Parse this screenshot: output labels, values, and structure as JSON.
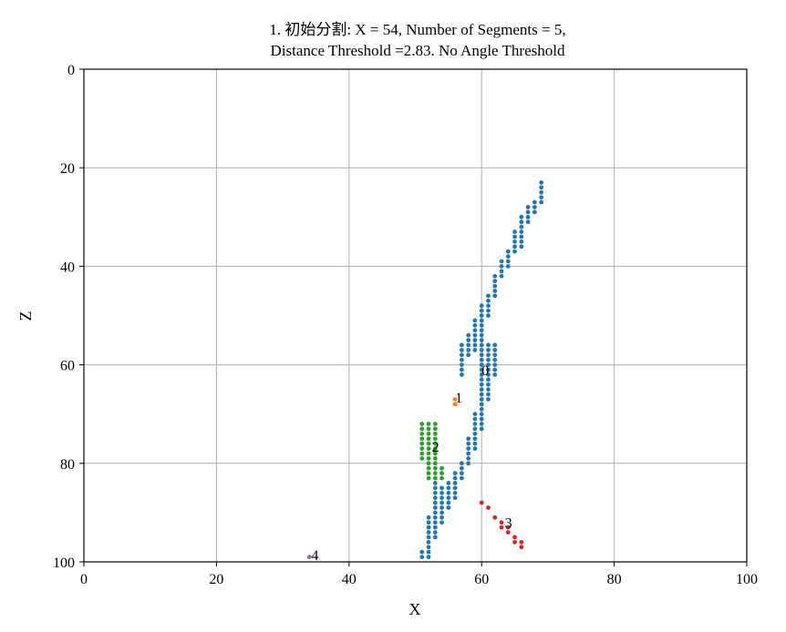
{
  "chart_data": {
    "type": "scatter",
    "title_line1": "1. 初始分割: X = 54, Number of Segments = 5,",
    "title_line2": "Distance Threshold =2.83. No Angle Threshold",
    "xlabel": "X",
    "ylabel": "Z",
    "xlim": [
      0,
      100
    ],
    "ylim": [
      0,
      100
    ],
    "y_inverted": true,
    "grid": true,
    "xticks": [
      0,
      20,
      40,
      60,
      80,
      100
    ],
    "yticks": [
      0,
      20,
      40,
      60,
      80,
      100
    ],
    "series": [
      {
        "label": "0",
        "label_pos": [
          60,
          61
        ],
        "color": "#1f77b4",
        "points": [
          [
            69,
            23
          ],
          [
            69,
            24
          ],
          [
            69,
            25
          ],
          [
            69,
            26
          ],
          [
            69,
            27
          ],
          [
            68,
            27
          ],
          [
            68,
            28
          ],
          [
            68,
            29
          ],
          [
            67,
            28
          ],
          [
            67,
            29
          ],
          [
            67,
            30
          ],
          [
            67,
            31
          ],
          [
            66,
            30
          ],
          [
            66,
            31
          ],
          [
            66,
            32
          ],
          [
            66,
            33
          ],
          [
            66,
            34
          ],
          [
            66,
            35
          ],
          [
            66,
            36
          ],
          [
            65,
            33
          ],
          [
            65,
            34
          ],
          [
            65,
            35
          ],
          [
            65,
            36
          ],
          [
            65,
            37
          ],
          [
            64,
            37
          ],
          [
            64,
            38
          ],
          [
            64,
            39
          ],
          [
            64,
            40
          ],
          [
            63,
            39
          ],
          [
            63,
            40
          ],
          [
            63,
            41
          ],
          [
            63,
            42
          ],
          [
            62,
            42
          ],
          [
            62,
            43
          ],
          [
            62,
            44
          ],
          [
            62,
            45
          ],
          [
            62,
            46
          ],
          [
            61,
            46
          ],
          [
            61,
            47
          ],
          [
            61,
            48
          ],
          [
            61,
            49
          ],
          [
            61,
            50
          ],
          [
            60,
            48
          ],
          [
            60,
            49
          ],
          [
            60,
            50
          ],
          [
            60,
            51
          ],
          [
            60,
            52
          ],
          [
            60,
            53
          ],
          [
            60,
            54
          ],
          [
            60,
            55
          ],
          [
            60,
            56
          ],
          [
            60,
            57
          ],
          [
            60,
            58
          ],
          [
            60,
            59
          ],
          [
            60,
            60
          ],
          [
            60,
            61
          ],
          [
            60,
            62
          ],
          [
            60,
            63
          ],
          [
            60,
            64
          ],
          [
            60,
            65
          ],
          [
            60,
            66
          ],
          [
            60,
            67
          ],
          [
            60,
            68
          ],
          [
            60,
            69
          ],
          [
            60,
            70
          ],
          [
            60,
            71
          ],
          [
            60,
            72
          ],
          [
            60,
            73
          ],
          [
            59,
            51
          ],
          [
            59,
            52
          ],
          [
            59,
            53
          ],
          [
            59,
            54
          ],
          [
            59,
            55
          ],
          [
            59,
            56
          ],
          [
            59,
            57
          ],
          [
            58,
            54
          ],
          [
            58,
            55
          ],
          [
            58,
            56
          ],
          [
            58,
            57
          ],
          [
            58,
            58
          ],
          [
            57,
            56
          ],
          [
            57,
            57
          ],
          [
            57,
            58
          ],
          [
            57,
            59
          ],
          [
            57,
            60
          ],
          [
            57,
            61
          ],
          [
            57,
            62
          ],
          [
            61,
            56
          ],
          [
            61,
            57
          ],
          [
            61,
            58
          ],
          [
            61,
            59
          ],
          [
            61,
            60
          ],
          [
            61,
            61
          ],
          [
            61,
            62
          ],
          [
            61,
            63
          ],
          [
            61,
            64
          ],
          [
            61,
            65
          ],
          [
            61,
            66
          ],
          [
            61,
            67
          ],
          [
            62,
            56
          ],
          [
            62,
            57
          ],
          [
            62,
            58
          ],
          [
            62,
            59
          ],
          [
            62,
            60
          ],
          [
            62,
            61
          ],
          [
            62,
            62
          ],
          [
            59,
            70
          ],
          [
            59,
            71
          ],
          [
            59,
            72
          ],
          [
            59,
            73
          ],
          [
            59,
            74
          ],
          [
            59,
            75
          ],
          [
            59,
            76
          ],
          [
            59,
            77
          ],
          [
            58,
            75
          ],
          [
            58,
            76
          ],
          [
            58,
            77
          ],
          [
            58,
            78
          ],
          [
            58,
            79
          ],
          [
            58,
            80
          ],
          [
            57,
            80
          ],
          [
            57,
            81
          ],
          [
            57,
            82
          ],
          [
            57,
            83
          ],
          [
            56,
            82
          ],
          [
            56,
            83
          ],
          [
            56,
            84
          ],
          [
            56,
            85
          ],
          [
            56,
            86
          ],
          [
            56,
            87
          ],
          [
            55,
            84
          ],
          [
            55,
            85
          ],
          [
            55,
            86
          ],
          [
            55,
            87
          ],
          [
            55,
            88
          ],
          [
            55,
            89
          ],
          [
            54,
            85
          ],
          [
            54,
            86
          ],
          [
            54,
            87
          ],
          [
            54,
            88
          ],
          [
            54,
            89
          ],
          [
            54,
            90
          ],
          [
            54,
            91
          ],
          [
            54,
            92
          ],
          [
            53,
            83
          ],
          [
            53,
            84
          ],
          [
            53,
            85
          ],
          [
            53,
            86
          ],
          [
            53,
            87
          ],
          [
            53,
            88
          ],
          [
            53,
            89
          ],
          [
            53,
            90
          ],
          [
            53,
            91
          ],
          [
            53,
            92
          ],
          [
            53,
            93
          ],
          [
            53,
            94
          ],
          [
            53,
            95
          ],
          [
            52,
            91
          ],
          [
            52,
            92
          ],
          [
            52,
            93
          ],
          [
            52,
            94
          ],
          [
            52,
            95
          ],
          [
            52,
            96
          ],
          [
            52,
            97
          ],
          [
            52,
            98
          ],
          [
            52,
            99
          ],
          [
            51,
            98
          ],
          [
            51,
            99
          ]
        ]
      },
      {
        "label": "1",
        "label_pos": [
          56,
          66.5
        ],
        "color": "#ff7f0e",
        "points": [
          [
            56,
            67
          ],
          [
            56,
            68
          ]
        ]
      },
      {
        "label": "2",
        "label_pos": [
          52.5,
          76.5
        ],
        "color": "#2ca02c",
        "points": [
          [
            51,
            72
          ],
          [
            51,
            73
          ],
          [
            51,
            74
          ],
          [
            51,
            75
          ],
          [
            51,
            76
          ],
          [
            51,
            77
          ],
          [
            51,
            78
          ],
          [
            51,
            79
          ],
          [
            52,
            72
          ],
          [
            52,
            73
          ],
          [
            52,
            74
          ],
          [
            52,
            75
          ],
          [
            52,
            76
          ],
          [
            52,
            77
          ],
          [
            52,
            78
          ],
          [
            52,
            79
          ],
          [
            52,
            80
          ],
          [
            52,
            81
          ],
          [
            52,
            82
          ],
          [
            52,
            83
          ],
          [
            53,
            72
          ],
          [
            53,
            73
          ],
          [
            53,
            74
          ],
          [
            53,
            75
          ],
          [
            53,
            76
          ],
          [
            53,
            77
          ],
          [
            53,
            78
          ],
          [
            53,
            79
          ],
          [
            53,
            80
          ],
          [
            53,
            81
          ],
          [
            53,
            82
          ],
          [
            53,
            83
          ],
          [
            54,
            81
          ],
          [
            54,
            82
          ],
          [
            54,
            83
          ]
        ]
      },
      {
        "label": "3",
        "label_pos": [
          63.5,
          92
        ],
        "color": "#d62728",
        "points": [
          [
            60,
            88
          ],
          [
            61,
            89
          ],
          [
            62,
            91
          ],
          [
            63,
            92
          ],
          [
            63,
            93
          ],
          [
            64,
            93
          ],
          [
            64,
            94
          ],
          [
            65,
            95
          ],
          [
            65,
            96
          ],
          [
            66,
            96
          ],
          [
            66,
            97
          ]
        ]
      },
      {
        "label": "4",
        "label_pos": [
          34.3,
          98.5
        ],
        "color": "#9467bd",
        "points": [
          [
            34,
            99
          ]
        ]
      }
    ]
  }
}
